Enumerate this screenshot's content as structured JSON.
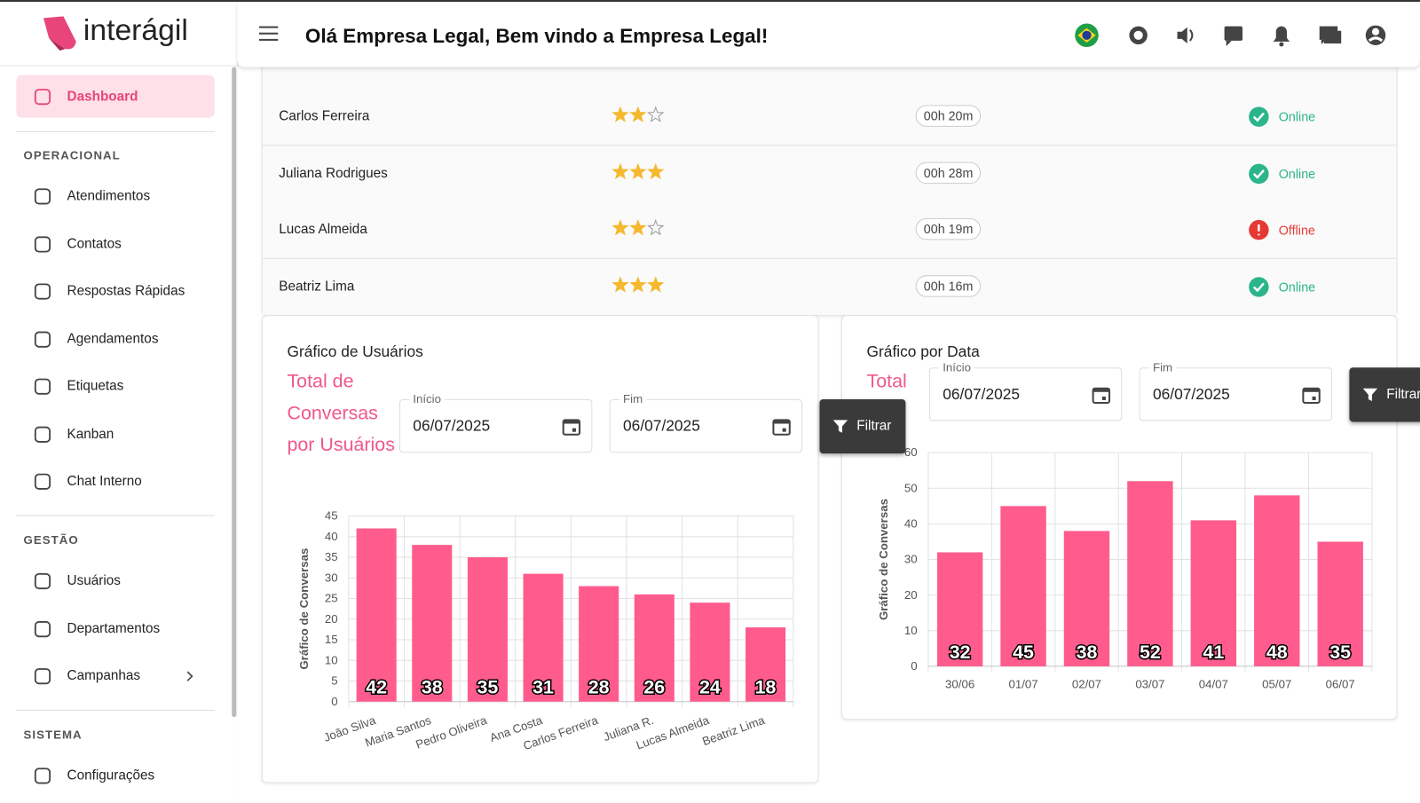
{
  "header": {
    "brand": "interágil",
    "greeting": "Olá Empresa Legal, Bem vindo a Empresa Legal!"
  },
  "sidebar": {
    "active": "Dashboard",
    "sections": [
      {
        "title": "OPERACIONAL",
        "items": [
          "Atendimentos",
          "Contatos",
          "Respostas Rápidas",
          "Agendamentos",
          "Etiquetas",
          "Kanban",
          "Chat Interno"
        ]
      },
      {
        "title": "GESTÃO",
        "items": [
          "Usuários",
          "Departamentos",
          "Campanhas"
        ]
      },
      {
        "title": "SISTEMA",
        "items": [
          "Configurações"
        ]
      }
    ]
  },
  "table": {
    "rows": [
      {
        "name": "Carlos Ferreira",
        "rating": 2,
        "time": "00h 20m",
        "status": "Online"
      },
      {
        "name": "Juliana Rodrigues",
        "rating": 3,
        "time": "00h 28m",
        "status": "Online"
      },
      {
        "name": "Lucas Almeida",
        "rating": 2,
        "time": "00h 19m",
        "status": "Offline"
      },
      {
        "name": "Beatriz Lima",
        "rating": 3,
        "time": "00h 16m",
        "status": "Online"
      }
    ]
  },
  "chart_data": [
    {
      "type": "bar",
      "title": "Gráfico de Usuários",
      "subtitle": "Total de Conversas por Usuários",
      "filter": {
        "start_label": "Início",
        "start": "06/07/2025",
        "end_label": "Fim",
        "end": "06/07/2025",
        "button": "Filtrar"
      },
      "y_label": "Gráfico de Conversas",
      "categories": [
        "João Silva",
        "Maria Santos",
        "Pedro Oliveira",
        "Ana Costa",
        "Carlos Ferreira",
        "Juliana R.",
        "Lucas Almeida",
        "Beatriz Lima"
      ],
      "values": [
        42,
        38,
        35,
        31,
        28,
        26,
        24,
        18
      ],
      "color": "#ff5c8d",
      "ylim": [
        0,
        45
      ],
      "yticks": [
        0,
        5,
        10,
        15,
        20,
        25,
        30,
        35,
        40,
        45
      ],
      "grid": true
    },
    {
      "type": "bar",
      "title": "Gráfico por Data",
      "subtitle": "Total",
      "filter": {
        "start_label": "Início",
        "start": "06/07/2025",
        "end_label": "Fim",
        "end": "06/07/2025",
        "button": "Filtrar"
      },
      "y_label": "Gráfico de Conversas",
      "categories": [
        "30/06",
        "01/07",
        "02/07",
        "03/07",
        "04/07",
        "05/07",
        "06/07"
      ],
      "values": [
        32,
        45,
        38,
        52,
        41,
        48,
        35
      ],
      "color": "#ff5c8d",
      "ylim": [
        0,
        60
      ],
      "yticks": [
        0,
        10,
        20,
        30,
        40,
        50,
        60
      ],
      "grid": true
    }
  ]
}
